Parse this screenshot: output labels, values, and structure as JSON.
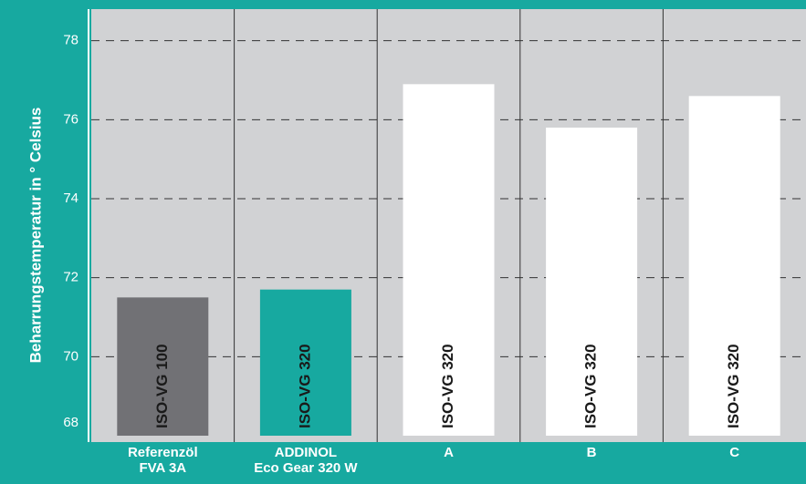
{
  "chart_data": {
    "type": "bar",
    "y_label": "Beharrungstemperatur in ° Celsius",
    "categories": [
      [
        "Referenzöl",
        "FVA 3A"
      ],
      [
        "ADDINOL",
        "Eco Gear 320 W"
      ],
      [
        "A"
      ],
      [
        "B"
      ],
      [
        "C"
      ]
    ],
    "values": [
      71.5,
      71.7,
      76.9,
      75.8,
      76.6
    ],
    "bar_labels": [
      "ISO-VG 100",
      "ISO-VG 320",
      "ISO-VG 320",
      "ISO-VG 320",
      "ISO-VG 320"
    ],
    "colors": [
      "#717175",
      "#17a9a0",
      "#ffffff",
      "#ffffff",
      "#ffffff"
    ],
    "ylim": [
      68,
      78.8
    ],
    "yticks": [
      68,
      70,
      72,
      74,
      76,
      78
    ],
    "grid": true
  }
}
